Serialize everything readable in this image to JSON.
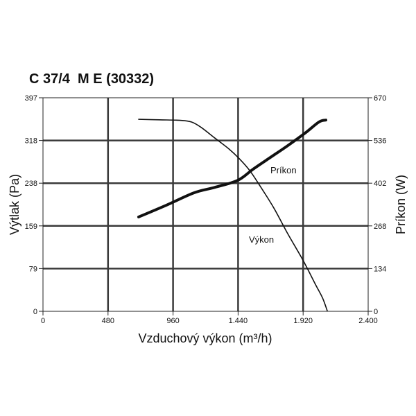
{
  "chart_data": {
    "type": "line",
    "title": "C 37/4  M E (30332)",
    "xlabel": "Vzduchový výkon (m³/h)",
    "ylabel": "Výtlak (Pa)",
    "y2label": "Príkon (W)",
    "xlim": [
      0,
      2400
    ],
    "ylim": [
      0,
      397
    ],
    "y2lim": [
      0,
      670
    ],
    "xticks": [
      "0",
      "480",
      "960",
      "1.440",
      "1.920",
      "2.400"
    ],
    "yticks": [
      "0",
      "79",
      "159",
      "238",
      "318",
      "397"
    ],
    "y2ticks": [
      "0",
      "134",
      "268",
      "402",
      "536",
      "670"
    ],
    "grid": true,
    "colors": {
      "lines": "#111111",
      "grid": "#3a3a3a",
      "background": "#ffffff"
    },
    "series": [
      {
        "name": "Výkon",
        "axis": "left",
        "x": [
          706,
          860,
          1013,
          1095,
          1167,
          1269,
          1372,
          1448,
          1525,
          1602,
          1704,
          1807,
          1919,
          2011,
          2063,
          2098
        ],
        "y": [
          357,
          356,
          355,
          352,
          342,
          322,
          302,
          284,
          262,
          233,
          192,
          144,
          95,
          50,
          25,
          1
        ]
      },
      {
        "name": "Príkon",
        "axis": "right",
        "x": [
          706,
          911,
          1116,
          1269,
          1438,
          1551,
          1679,
          1807,
          1934,
          2037,
          2088
        ],
        "y": [
          296,
          333,
          372,
          389,
          411,
          446,
          483,
          520,
          559,
          594,
          600
        ]
      }
    ]
  }
}
